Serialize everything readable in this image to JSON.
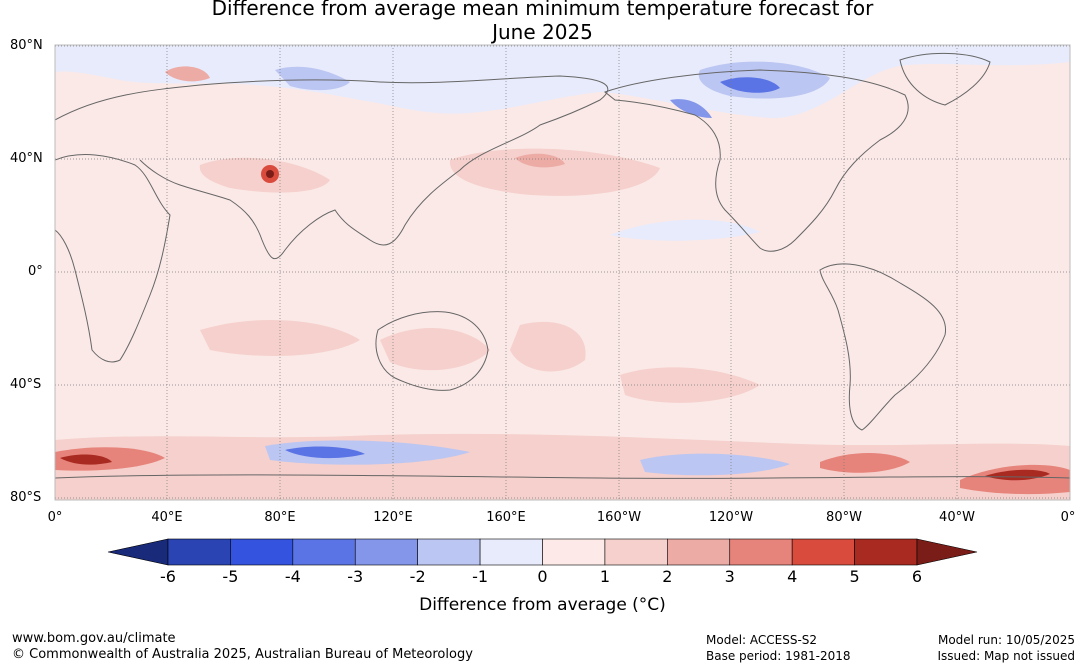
{
  "title": {
    "line1": "Difference from average mean minimum temperature forecast for",
    "line2": "June 2025"
  },
  "map": {
    "lat_labels": [
      "80°N",
      "40°N",
      "0°",
      "40°S",
      "80°S"
    ],
    "lon_labels": [
      "0°",
      "40°E",
      "80°E",
      "120°E",
      "160°E",
      "160°W",
      "120°W",
      "80°W",
      "40°W",
      "0°"
    ],
    "ocean_color": "#fbe9e7",
    "land_outline_color": "#666666"
  },
  "colorbar": {
    "ticks": [
      "-6",
      "-5",
      "-4",
      "-3",
      "-2",
      "-1",
      "0",
      "1",
      "2",
      "3",
      "4",
      "5",
      "6"
    ],
    "colors": [
      "#1a2a7a",
      "#2a45b3",
      "#3454e0",
      "#5b74e5",
      "#8396ea",
      "#bcc6f2",
      "#e8ebfb",
      "#fde9e7",
      "#f5d0cc",
      "#edaba5",
      "#e6837a",
      "#d94c3d",
      "#a82a20",
      "#7a1d18"
    ],
    "label": "Difference from average (°C)"
  },
  "footer": {
    "url": "www.bom.gov.au/climate",
    "copyright": "© Commonwealth of Australia 2025, Australian Bureau of Meteorology",
    "model": "Model: ACCESS-S2",
    "base_period": "Base period: 1981-2018",
    "model_run": "Model run: 10/05/2025",
    "issued": "Issued: Map not issued"
  }
}
